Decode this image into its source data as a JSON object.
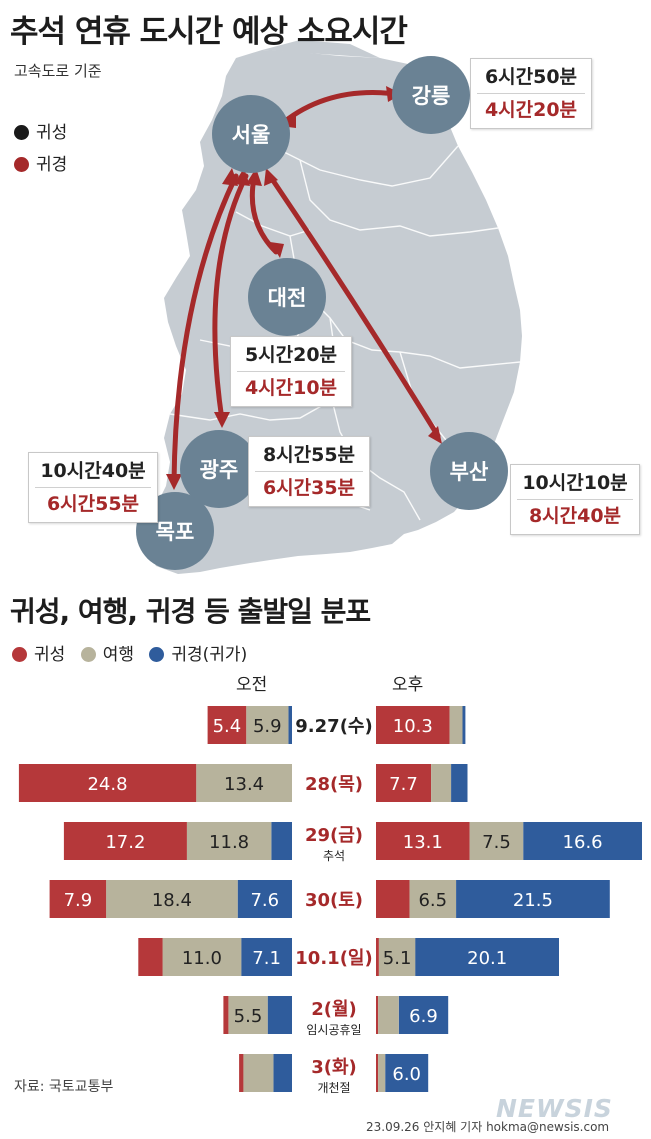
{
  "title": "추석 연휴 도시간 예상 소요시간",
  "subtitle": "고속도로 기준",
  "map_legend": [
    {
      "label": "귀성",
      "color": "#1a1a1a"
    },
    {
      "label": "귀경",
      "color": "#a5292a"
    }
  ],
  "cities": {
    "seoul": "서울",
    "gangneung": "강릉",
    "daejeon": "대전",
    "gwangju": "광주",
    "busan": "부산",
    "mokpo": "목포"
  },
  "routes": {
    "gangneung": {
      "go": "6시간50분",
      "back": "4시간20분"
    },
    "daejeon": {
      "go": "5시간20분",
      "back": "4시간10분"
    },
    "gwangju": {
      "go": "8시간55분",
      "back": "6시간35분"
    },
    "mokpo": {
      "go": "10시간40분",
      "back": "6시간55분"
    },
    "busan": {
      "go": "10시간10분",
      "back": "8시간40분"
    }
  },
  "section_title": "귀성, 여행, 귀경 등 출발일 분포",
  "dist_legend": [
    {
      "label": "귀성",
      "color": "#b5383a"
    },
    {
      "label": "여행",
      "color": "#b7b39c"
    },
    {
      "label": "귀경(귀가)",
      "color": "#2f5c9c"
    }
  ],
  "am_label": "오전",
  "pm_label": "오후",
  "colors": {
    "homebound": "#b5383a",
    "travel": "#b7b39c",
    "return": "#2f5c9c",
    "map_land": "#c6ccd2",
    "arrow": "#a5292a",
    "city": "#6a8294"
  },
  "chart_data": {
    "type": "bar",
    "orientation": "horizontal-stacked-diverging",
    "title": "귀성, 여행, 귀경 등 출발일 분포",
    "series": [
      {
        "name": "귀성",
        "color": "#b5383a"
      },
      {
        "name": "여행",
        "color": "#b7b39c"
      },
      {
        "name": "귀경(귀가)",
        "color": "#2f5c9c"
      }
    ],
    "groups": [
      "오전",
      "오후"
    ],
    "rows": [
      {
        "date": "9.27(수)",
        "note": "",
        "date_color": "#222222",
        "am": [
          5.4,
          5.9,
          0.5
        ],
        "am_labels": [
          "5.4",
          "5.9",
          ""
        ],
        "pm": [
          10.3,
          1.8,
          0.4
        ],
        "pm_labels": [
          "10.3",
          "",
          ""
        ]
      },
      {
        "date": "28(목)",
        "note": "",
        "date_color": "#a5292a",
        "am": [
          24.8,
          13.4,
          0.0
        ],
        "am_labels": [
          "24.8",
          "13.4",
          ""
        ],
        "pm": [
          7.7,
          2.8,
          2.3
        ],
        "pm_labels": [
          "7.7",
          "",
          ""
        ]
      },
      {
        "date": "29(금)",
        "note": "추석",
        "date_color": "#a5292a",
        "am": [
          17.2,
          11.8,
          2.9
        ],
        "am_labels": [
          "17.2",
          "11.8",
          ""
        ],
        "pm": [
          13.1,
          7.5,
          16.6
        ],
        "pm_labels": [
          "13.1",
          "7.5",
          "16.6"
        ]
      },
      {
        "date": "30(토)",
        "note": "",
        "date_color": "#a5292a",
        "am": [
          7.9,
          18.4,
          7.6
        ],
        "am_labels": [
          "7.9",
          "18.4",
          "7.6"
        ],
        "pm": [
          4.7,
          6.5,
          21.5
        ],
        "pm_labels": [
          "",
          "6.5",
          "21.5"
        ]
      },
      {
        "date": "10.1(일)",
        "note": "",
        "date_color": "#a5292a",
        "am": [
          3.4,
          11.0,
          7.1
        ],
        "am_labels": [
          "",
          "11.0",
          "7.1"
        ],
        "pm": [
          0.4,
          5.1,
          20.1
        ],
        "pm_labels": [
          "",
          "5.1",
          "20.1"
        ]
      },
      {
        "date": "2(월)",
        "note": "임시공휴일",
        "date_color": "#a5292a",
        "am": [
          0.7,
          5.5,
          3.4
        ],
        "am_labels": [
          "",
          "5.5",
          ""
        ],
        "pm": [
          0.3,
          2.9,
          6.9
        ],
        "pm_labels": [
          "",
          "",
          "6.9"
        ]
      },
      {
        "date": "3(화)",
        "note": "개천절",
        "date_color": "#a5292a",
        "am": [
          0.6,
          4.2,
          2.6
        ],
        "am_labels": [
          "",
          "",
          ""
        ],
        "pm": [
          0.3,
          1.0,
          6.0
        ],
        "pm_labels": [
          "",
          "",
          "6.0"
        ]
      }
    ]
  },
  "source": "자료: 국토교통부",
  "credit": "23.09.26 안지혜 기자 hokma@newsis.com",
  "watermark": "NEWSIS"
}
